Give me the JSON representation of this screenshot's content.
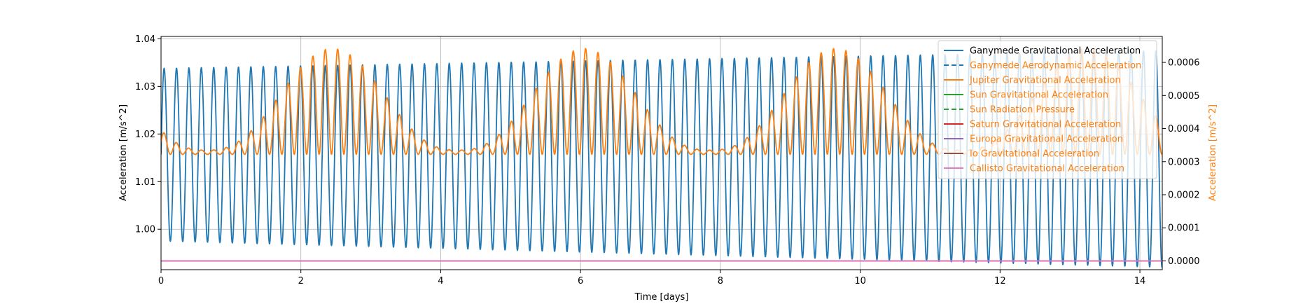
{
  "chart_data": {
    "type": "line",
    "xlabel": "Time [days]",
    "ylabel_left": "Acceleration [m/s^2]",
    "ylabel_right": "Acceleration [m/s^2]",
    "xlim": [
      0,
      14.32
    ],
    "ylim_left": [
      0.9915,
      1.0405
    ],
    "ylim_right": [
      -2.65e-05,
      0.0006785
    ],
    "x_ticks": [
      0,
      2,
      4,
      6,
      8,
      10,
      12,
      14
    ],
    "x_tick_labels": [
      "0",
      "2",
      "4",
      "6",
      "8",
      "10",
      "12",
      "14"
    ],
    "y_left_ticks": [
      1.0,
      1.01,
      1.02,
      1.03,
      1.04
    ],
    "y_left_tick_labels": [
      "1.00",
      "1.01",
      "1.02",
      "1.03",
      "1.04"
    ],
    "y_right_ticks": [
      0.0,
      0.0001,
      0.0002,
      0.0003,
      0.0004,
      0.0005,
      0.0006
    ],
    "y_right_tick_labels": [
      "0.0000",
      "0.0001",
      "0.0002",
      "0.0003",
      "0.0004",
      "0.0005",
      "0.0006"
    ],
    "grid": true,
    "legend_position": "top-right",
    "series": [
      {
        "name": "Ganymede Gravitational Acceleration",
        "axis": "left",
        "color": "#1f77b4",
        "dash": "solid",
        "oscillation": {
          "period_days": 0.1773,
          "max_start": 1.0338,
          "max_end": 1.0375,
          "min_start": 0.9975,
          "min_end": 0.992
        }
      },
      {
        "name": "Ganymede Aerodynamic Acceleration",
        "axis": "right",
        "color": "#1f77b4",
        "dash": "dashed",
        "constant": 0.0
      },
      {
        "name": "Jupiter Gravitational Acceleration",
        "axis": "right",
        "color": "#ff7f0e",
        "dash": "solid",
        "oscillation": {
          "period_days": 0.1773,
          "floor": 0.000322,
          "envelope_min": 0.000335,
          "envelope_max": 0.000642,
          "envelope_period_days": 3.6,
          "envelope_peaks": [
            2.45,
            6.05,
            9.65
          ]
        }
      },
      {
        "name": "Sun Gravitational Acceleration",
        "axis": "right",
        "color": "#2ca02c",
        "dash": "solid",
        "constant": 0.0
      },
      {
        "name": "Sun Radiation Pressure",
        "axis": "right",
        "color": "#2ca02c",
        "dash": "dashed",
        "constant": 0.0
      },
      {
        "name": "Saturn Gravitational Acceleration",
        "axis": "right",
        "color": "#d62728",
        "dash": "solid",
        "constant": 0.0
      },
      {
        "name": "Europa Gravitational Acceleration",
        "axis": "right",
        "color": "#9467bd",
        "dash": "solid",
        "constant": 0.0
      },
      {
        "name": "Io Gravitational Acceleration",
        "axis": "right",
        "color": "#8c564b",
        "dash": "solid",
        "constant": 0.0
      },
      {
        "name": "Callisto Gravitational Acceleration",
        "axis": "right",
        "color": "#e377c2",
        "dash": "solid",
        "constant": 0.0
      }
    ],
    "legend_text_colors": {
      "primary": "#000000",
      "secondary": "#ff7f0e"
    }
  }
}
